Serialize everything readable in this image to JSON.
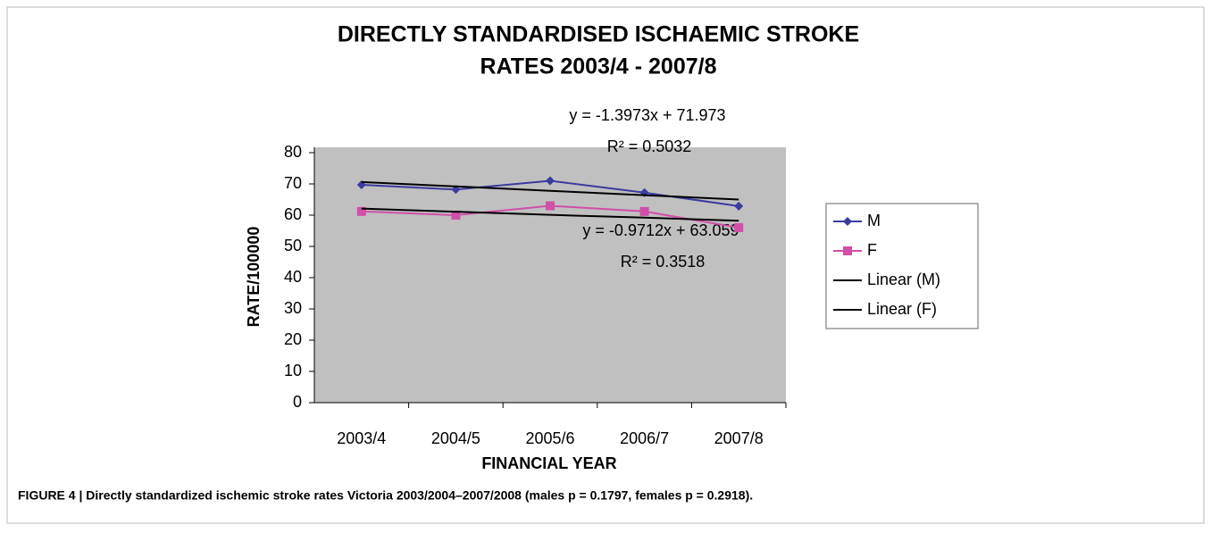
{
  "chart_data": {
    "type": "line",
    "title": [
      "DIRECTLY STANDARDISED ISCHAEMIC STROKE",
      "RATES 2003/4 - 2007/8"
    ],
    "x_label": "FINANCIAL YEAR",
    "y_label": "RATE/100000",
    "categories": [
      "2003/4",
      "2004/5",
      "2005/6",
      "2006/7",
      "2007/8"
    ],
    "series": [
      {
        "name": "M",
        "color": "#3b3ba0",
        "marker": "diamond",
        "values": [
          69.7,
          68.2,
          71,
          67.2,
          62.9
        ]
      },
      {
        "name": "F",
        "color": "#d04fa8",
        "marker": "square",
        "values": [
          61.2,
          60,
          63,
          61.2,
          56
        ]
      },
      {
        "name": "Linear (M)",
        "color": "#000000",
        "marker": "none",
        "values": [
          70.6,
          69.2,
          67.8,
          66.4,
          65
        ]
      },
      {
        "name": "Linear (F)",
        "color": "#000000",
        "marker": "none",
        "values": [
          62.1,
          61.1,
          60.1,
          59.2,
          58.2
        ]
      }
    ],
    "annotations": [
      "y = -1.3973x + 71.973",
      "R² = 0.5032",
      "y = -0.9712x + 63.059",
      "R² = 0.3518"
    ],
    "ylim": [
      0,
      80
    ],
    "yticks": [
      0,
      10,
      20,
      30,
      40,
      50,
      60,
      70,
      80
    ],
    "legend": "right",
    "background": "#c0c0c0"
  },
  "caption": "FIGURE 4 | Directly standardized ischemic stroke rates Victoria 2003/2004–2007/2008 (males p = 0.1797, females p = 0.2918)."
}
